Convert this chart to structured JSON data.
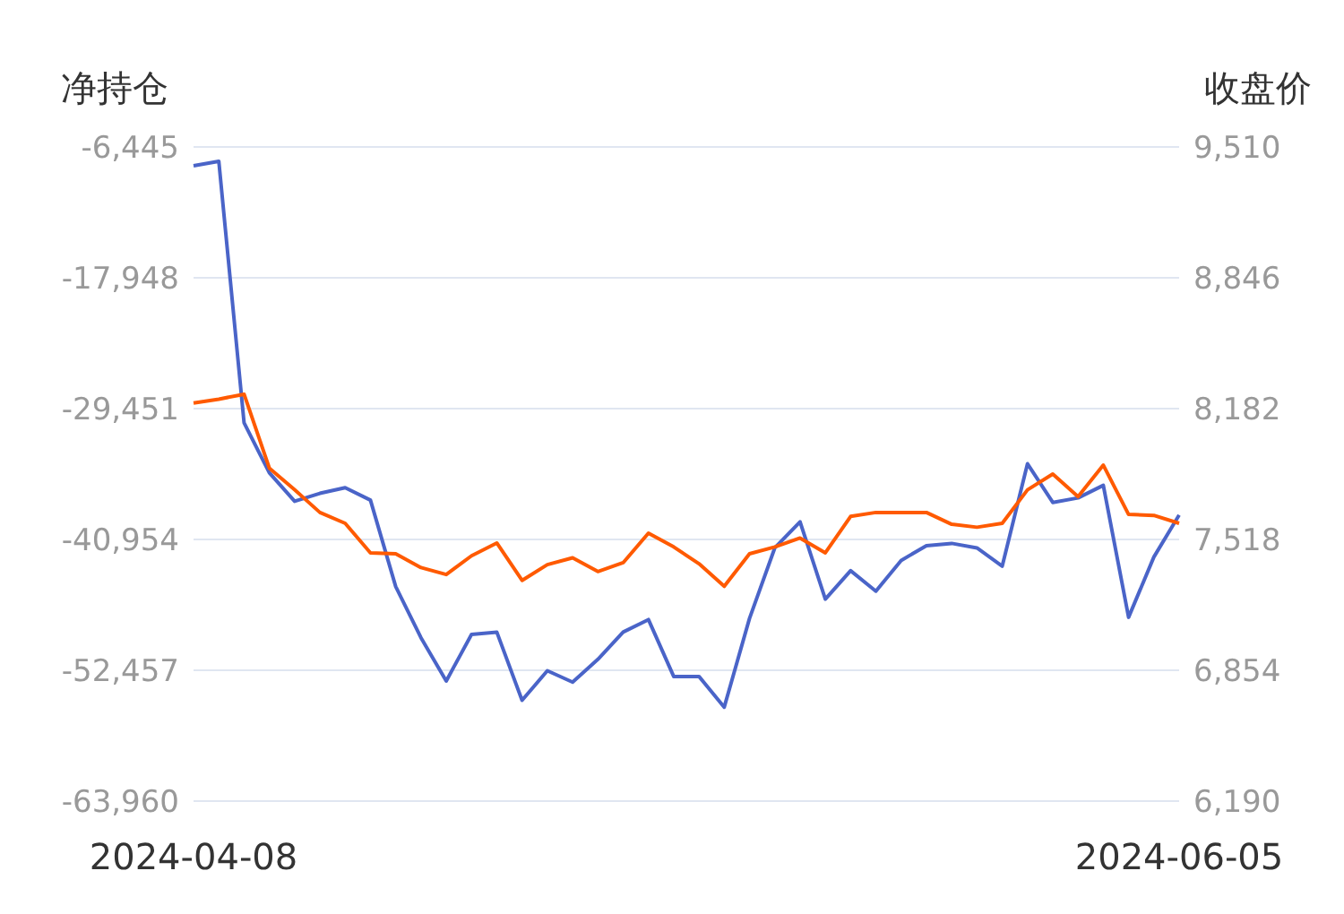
{
  "chart_data": {
    "type": "line",
    "ylabel": "净持仓",
    "y2label": "收盘价",
    "categories": [
      "2024-04-08",
      null,
      null,
      null,
      null,
      null,
      null,
      null,
      null,
      null,
      null,
      null,
      null,
      null,
      null,
      null,
      null,
      null,
      null,
      null,
      null,
      null,
      null,
      null,
      null,
      null,
      null,
      null,
      null,
      null,
      null,
      null,
      null,
      null,
      null,
      null,
      null,
      null,
      null,
      "2024-06-05"
    ],
    "series": [
      {
        "color": "#4a64c8",
        "values": [
          -8100,
          -7700,
          -30700,
          -35100,
          -37600,
          -36900,
          -36400,
          -37500,
          -45100,
          -49600,
          -53400,
          -49300,
          -49100,
          -55100,
          -52500,
          -53500,
          -51500,
          -49100,
          -48000,
          -53000,
          -53000,
          -55700,
          -47900,
          -41700,
          -39400,
          -46200,
          -43700,
          -45500,
          -42800,
          -41500,
          -41300,
          -41700,
          -43300,
          -34300,
          -37700,
          -37300,
          -36200,
          -47800,
          -42500,
          -38800
        ]
      },
      {
        "color": "#ff5a00",
        "axis": "y2",
        "values": [
          8210,
          8230,
          8255,
          7880,
          7770,
          7655,
          7600,
          7450,
          7445,
          7375,
          7340,
          7435,
          7500,
          7310,
          7390,
          7425,
          7355,
          7400,
          7550,
          7480,
          7395,
          7280,
          7445,
          7480,
          7525,
          7450,
          7635,
          7655,
          7655,
          7655,
          7595,
          7580,
          7600,
          7770,
          7850,
          7735,
          7895,
          7645,
          7640,
          7600
        ]
      }
    ],
    "ylim": [
      -63960,
      -6445
    ],
    "yticks": [
      {
        "value": -6445,
        "label": "-6,445"
      },
      {
        "value": -17948,
        "label": "-17,948"
      },
      {
        "value": -29451,
        "label": "-29,451"
      },
      {
        "value": -40954,
        "label": "-40,954"
      },
      {
        "value": -52457,
        "label": "-52,457"
      },
      {
        "value": -63960,
        "label": "-63,960"
      }
    ],
    "y2lim": [
      6190,
      9510
    ],
    "y2ticks": [
      {
        "value": 6190,
        "label": "6,190"
      },
      {
        "value": 6854,
        "label": "6,854"
      },
      {
        "value": 7518,
        "label": "7,518"
      },
      {
        "value": 8182,
        "label": "8,182"
      },
      {
        "value": 8846,
        "label": "8,846"
      },
      {
        "value": 9510,
        "label": "9,510"
      }
    ],
    "grid": "y",
    "legend": false,
    "marker": "none",
    "line_style": "solid"
  }
}
